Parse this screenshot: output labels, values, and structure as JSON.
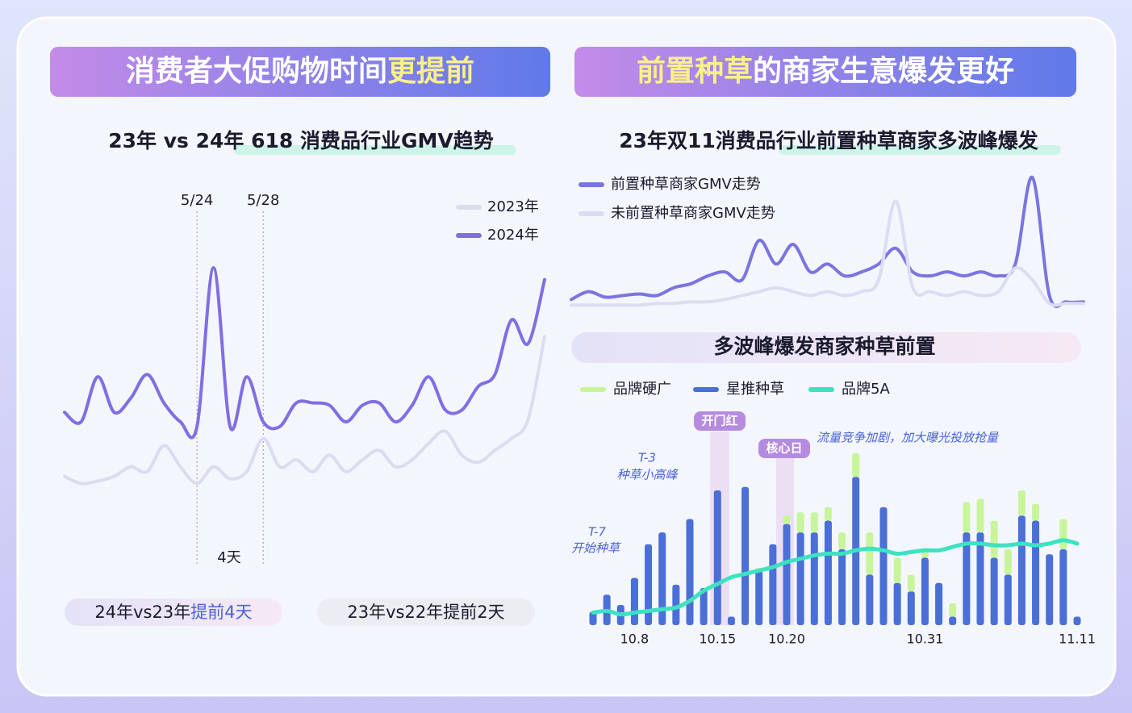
{
  "banners": [
    {
      "parts": [
        "消费者大促购物时间",
        "更提前"
      ]
    },
    {
      "parts": [
        "前置种草",
        "的商家生意爆发更好"
      ]
    }
  ],
  "chart_data": [
    {
      "type": "line",
      "title": "23年 vs 24年 618 消费品行业GMV趋势",
      "categories": [
        null,
        null,
        null,
        null,
        null,
        null,
        null,
        null,
        "5/24",
        null,
        null,
        null,
        "5/28",
        null,
        null,
        null,
        null,
        null,
        null,
        null,
        null,
        null,
        null,
        null,
        null,
        null,
        null,
        null,
        null,
        null
      ],
      "series": [
        {
          "name": "2023年",
          "color": "#dcdcf0",
          "values": [
            10,
            7,
            8,
            10,
            14,
            12,
            23,
            14,
            7,
            14,
            9,
            12,
            26,
            14,
            17,
            12,
            19,
            12,
            17,
            21,
            14,
            17,
            24,
            29,
            19,
            16,
            21,
            26,
            34,
            69
          ]
        },
        {
          "name": "2024年",
          "color": "#7f6fe2",
          "values": [
            37,
            33,
            52,
            37,
            43,
            53,
            41,
            33,
            31,
            98,
            31,
            52,
            33,
            31,
            41,
            41,
            40,
            33,
            40,
            41,
            33,
            40,
            52,
            38,
            38,
            48,
            53,
            76,
            66,
            93
          ]
        }
      ],
      "annotations": [
        "4天"
      ]
    },
    {
      "type": "line",
      "title": "23年双11消费品行业前置种草商家多波峰爆发",
      "series": [
        {
          "name": "前置种草商家GMV走势",
          "color": "#7b74e0",
          "values": [
            15,
            25,
            18,
            20,
            22,
            20,
            30,
            35,
            45,
            50,
            40,
            90,
            60,
            85,
            50,
            60,
            45,
            50,
            60,
            80,
            50,
            45,
            50,
            45,
            50,
            45,
            60,
            170,
            20,
            12,
            12
          ]
        },
        {
          "name": "未前置种草商家GMV走势",
          "color": "#dcdcf2",
          "values": [
            8,
            8,
            8,
            8,
            8,
            10,
            10,
            12,
            12,
            15,
            20,
            25,
            30,
            25,
            20,
            25,
            20,
            25,
            40,
            140,
            30,
            25,
            20,
            25,
            20,
            25,
            55,
            40,
            10,
            10,
            10
          ]
        }
      ]
    },
    {
      "type": "bar",
      "title": "多波峰爆发商家种草前置",
      "stacked": true,
      "categories": [
        null,
        null,
        null,
        "10.8",
        null,
        null,
        null,
        null,
        null,
        "10.15",
        null,
        null,
        null,
        null,
        "10.20",
        null,
        null,
        null,
        null,
        null,
        null,
        null,
        null,
        null,
        "10.31",
        null,
        null,
        null,
        null,
        null,
        null,
        null,
        null,
        null,
        null,
        "11.11"
      ],
      "series": [
        {
          "name": "品牌硬广",
          "color": "#c8f59a",
          "values": [
            0,
            0,
            0,
            0,
            0,
            0,
            0,
            0,
            0,
            0,
            0,
            0,
            2,
            0,
            5,
            12,
            12,
            8,
            10,
            14,
            25,
            0,
            15,
            10,
            5,
            0,
            8,
            18,
            20,
            22,
            15,
            15,
            10,
            0,
            18,
            0
          ]
        },
        {
          "name": "星推种草",
          "color": "#4a6fd6",
          "values": [
            8,
            18,
            12,
            28,
            48,
            55,
            24,
            63,
            22,
            80,
            5,
            82,
            32,
            48,
            60,
            55,
            55,
            62,
            45,
            88,
            30,
            70,
            25,
            20,
            40,
            25,
            5,
            55,
            55,
            40,
            30,
            65,
            62,
            42,
            45,
            5
          ]
        },
        {
          "name": "品牌5A",
          "type": "line",
          "color": "#3de3c0",
          "values": [
            5,
            6,
            4,
            5,
            6,
            7,
            8,
            12,
            18,
            22,
            26,
            28,
            30,
            32,
            35,
            37,
            39,
            40,
            40,
            42,
            43,
            42,
            40,
            41,
            42,
            42,
            44,
            46,
            46,
            45,
            45,
            46,
            45,
            46,
            48,
            46
          ]
        }
      ],
      "annotations": [
        "开门红",
        "核心日",
        "流量竞争加剧，加大曝光投放抢量",
        "T-3",
        "种草小高峰",
        "T-7",
        "开始种草"
      ]
    }
  ],
  "footer": [
    {
      "parts": [
        "24年vs23年",
        "提前4天"
      ]
    },
    {
      "parts": [
        "23年vs22年提前2天"
      ]
    }
  ]
}
